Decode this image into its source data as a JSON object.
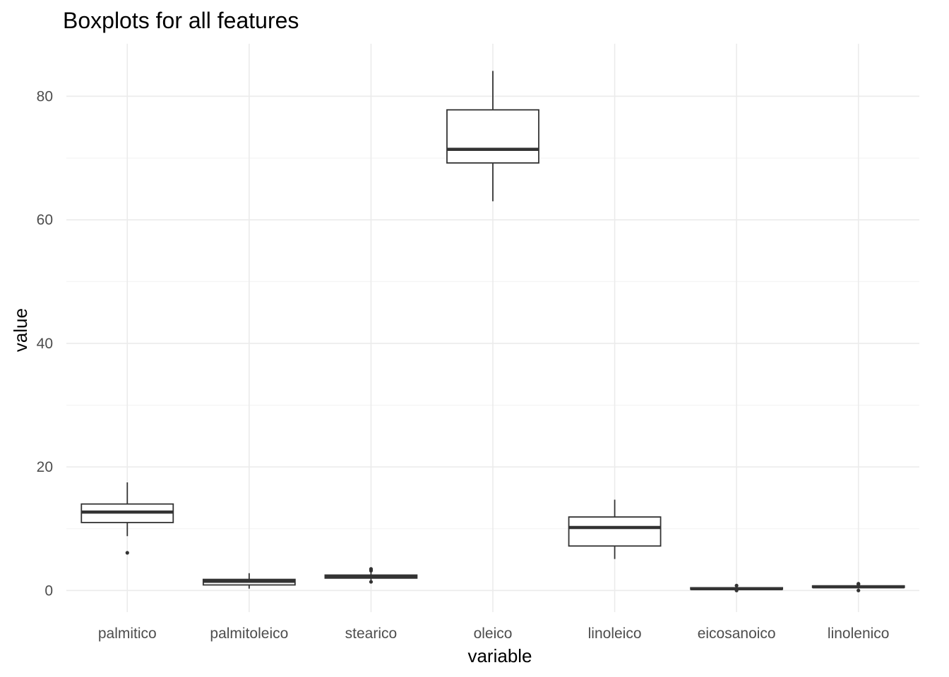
{
  "chart_data": {
    "type": "boxplot",
    "title": "Boxplots for all features",
    "xlabel": "variable",
    "ylabel": "value",
    "ylim": [
      -3.5,
      88.5
    ],
    "yticks": [
      0,
      20,
      40,
      60,
      80
    ],
    "yminor": [
      10,
      30,
      50,
      70
    ],
    "grid": true,
    "legend": "none",
    "categories": [
      "palmitico",
      "palmitoleico",
      "stearico",
      "oleico",
      "linoleico",
      "eicosanoico",
      "linolenico"
    ],
    "boxes": [
      {
        "name": "palmitico",
        "min": 8.8,
        "q1": 11.0,
        "median": 12.7,
        "q3": 14.0,
        "max": 17.5,
        "outliers": [
          6.1
        ]
      },
      {
        "name": "palmitoleico",
        "min": 0.3,
        "q1": 0.9,
        "median": 1.5,
        "q3": 1.8,
        "max": 2.8,
        "outliers": []
      },
      {
        "name": "stearico",
        "min": 1.5,
        "q1": 2.0,
        "median": 2.2,
        "q3": 2.5,
        "max": 3.0,
        "outliers": [
          3.2,
          3.4,
          3.5,
          1.4
        ]
      },
      {
        "name": "oleico",
        "min": 63.0,
        "q1": 69.2,
        "median": 71.4,
        "q3": 77.8,
        "max": 84.1,
        "outliers": []
      },
      {
        "name": "linoleico",
        "min": 5.1,
        "q1": 7.2,
        "median": 10.2,
        "q3": 11.9,
        "max": 14.7,
        "outliers": []
      },
      {
        "name": "eicosanoico",
        "min": 0.1,
        "q1": 0.2,
        "median": 0.3,
        "q3": 0.45,
        "max": 0.7,
        "outliers": [
          0.8,
          0.0
        ]
      },
      {
        "name": "linolenico",
        "min": 0.3,
        "q1": 0.5,
        "median": 0.6,
        "q3": 0.75,
        "max": 0.9,
        "outliers": [
          1.0,
          1.1,
          0.0
        ]
      }
    ]
  }
}
